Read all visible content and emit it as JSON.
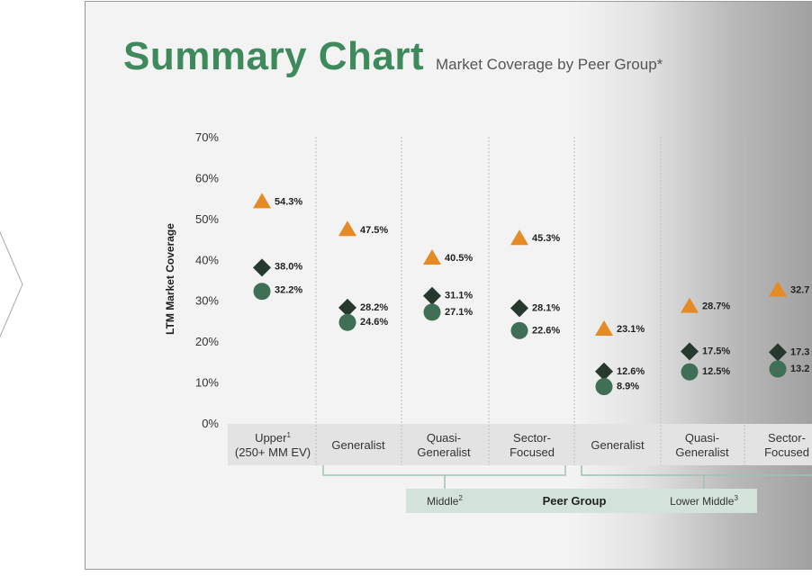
{
  "header": {
    "title": "Summary Chart",
    "subtitle": "Market Coverage by Peer Group*"
  },
  "chart_data": {
    "type": "scatter",
    "title": "Summary Chart",
    "subtitle": "Market Coverage by Peer Group*",
    "ylabel": "LTM Market Coverage",
    "xlabel": "Peer Group",
    "ylim": [
      0,
      70
    ],
    "yticks": [
      "0%",
      "10%",
      "20%",
      "30%",
      "40%",
      "50%",
      "60%",
      "70%"
    ],
    "grid": "vertical-dotted",
    "categories": [
      {
        "lines": [
          "Upper",
          "(250+ MM EV)"
        ],
        "sup": "1"
      },
      {
        "lines": [
          "Generalist"
        ]
      },
      {
        "lines": [
          "Quasi-",
          "Generalist"
        ]
      },
      {
        "lines": [
          "Sector-",
          "Focused"
        ]
      },
      {
        "lines": [
          "Generalist"
        ]
      },
      {
        "lines": [
          "Quasi-",
          "Generalist"
        ]
      },
      {
        "lines": [
          "Sector-",
          "Focused"
        ]
      }
    ],
    "series": [
      {
        "marker": "triangle",
        "color": "#e58a24",
        "values": [
          54.3,
          47.5,
          40.5,
          45.3,
          23.1,
          28.7,
          32.7
        ],
        "labels": [
          "54.3%",
          "47.5%",
          "40.5%",
          "45.3%",
          "23.1%",
          "28.7%",
          "32.7"
        ]
      },
      {
        "marker": "diamond",
        "color": "#27392f",
        "values": [
          38.0,
          28.2,
          31.1,
          28.1,
          12.6,
          17.5,
          17.3
        ],
        "labels": [
          "38.0%",
          "28.2%",
          "31.1%",
          "28.1%",
          "12.6%",
          "17.5%",
          "17.3"
        ]
      },
      {
        "marker": "circle",
        "color": "#3f6f55",
        "values": [
          32.2,
          24.6,
          27.1,
          22.6,
          8.9,
          12.5,
          13.2
        ],
        "labels": [
          "32.2%",
          "24.6%",
          "27.1%",
          "22.6%",
          "8.9%",
          "12.5%",
          "13.2"
        ]
      }
    ],
    "groups": [
      {
        "label": "Middle",
        "sup": "2"
      },
      {
        "label": "Peer Group"
      },
      {
        "label": "Lower Middle",
        "sup": "3"
      }
    ]
  }
}
